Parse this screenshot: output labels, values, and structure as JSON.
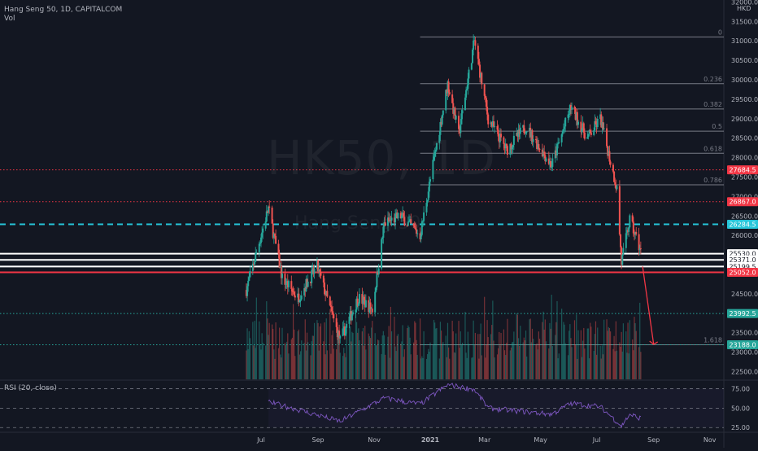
{
  "header": {
    "symbol_line": "Hang Seng 50, 1D, CAPITALCOM",
    "vol_label": "Vol",
    "watermark_symbol": "HK50, 1D",
    "watermark_name": "Hang Seng 50"
  },
  "currency": "HKD",
  "rsi_title": "RSI (20, close)",
  "chart_data": {
    "type": "candlestick",
    "title": "Hang Seng 50, 1D, CAPITALCOM",
    "x_ticks": [
      "Jul",
      "Sep",
      "Nov",
      "2021",
      "Mar",
      "May",
      "Jul",
      "Sep",
      "Nov"
    ],
    "y_ticks": [
      32000,
      31500,
      31000,
      30500,
      30000,
      29500,
      29000,
      28500,
      28000,
      27500,
      27000,
      26500,
      26000,
      25500,
      25000,
      24500,
      24000,
      23500,
      23000,
      22500
    ],
    "y_range": [
      22300,
      32050
    ],
    "key_price": [
      {
        "date": "2020-06-15",
        "value": 24600
      },
      {
        "date": "2020-07-09",
        "value": 26700
      },
      {
        "date": "2020-07-24",
        "value": 24900
      },
      {
        "date": "2020-08-10",
        "value": 24400
      },
      {
        "date": "2020-08-31",
        "value": 25200
      },
      {
        "date": "2020-09-25",
        "value": 23300
      },
      {
        "date": "2020-10-15",
        "value": 24400
      },
      {
        "date": "2020-10-30",
        "value": 24100
      },
      {
        "date": "2020-11-12",
        "value": 26300
      },
      {
        "date": "2020-11-30",
        "value": 26500
      },
      {
        "date": "2020-12-21",
        "value": 26000
      },
      {
        "date": "2021-01-20",
        "value": 29900
      },
      {
        "date": "2021-02-01",
        "value": 28600
      },
      {
        "date": "2021-02-18",
        "value": 31000
      },
      {
        "date": "2021-03-05",
        "value": 29000
      },
      {
        "date": "2021-03-25",
        "value": 28200
      },
      {
        "date": "2021-04-15",
        "value": 28800
      },
      {
        "date": "2021-05-13",
        "value": 27800
      },
      {
        "date": "2021-06-03",
        "value": 29300
      },
      {
        "date": "2021-06-21",
        "value": 28500
      },
      {
        "date": "2021-07-05",
        "value": 29000
      },
      {
        "date": "2021-07-23",
        "value": 27200
      },
      {
        "date": "2021-07-28",
        "value": 25300
      },
      {
        "date": "2021-08-06",
        "value": 26400
      },
      {
        "date": "2021-08-18",
        "value": 25600
      }
    ],
    "price_labels": [
      {
        "value": 27684.5,
        "label": "27684.5",
        "color": "#f23645",
        "style": "dotted"
      },
      {
        "value": 26867.0,
        "label": "26867.0",
        "color": "#f23645",
        "style": "dotted"
      },
      {
        "value": 26284.5,
        "label": "26284.5",
        "color": "#26c6da",
        "style": "dashed"
      },
      {
        "value": 25530.0,
        "label": "25530.0",
        "color": "#ffffff",
        "style": "solid"
      },
      {
        "value": 25371.0,
        "label": "25371.0",
        "color": "#ffffff",
        "style": "solid"
      },
      {
        "value": 25199.5,
        "label": "25199.5",
        "color": "#ffffff",
        "style": "solid"
      },
      {
        "value": 25052.0,
        "label": "25052.0",
        "color": "#f23645",
        "style": "solid"
      },
      {
        "value": 23992.5,
        "label": "23992.5",
        "color": "#26a69a",
        "style": "dotted"
      },
      {
        "value": 23188.0,
        "label": "23188.0",
        "color": "#26a69a",
        "style": "dotted"
      }
    ],
    "fib_levels": [
      {
        "ratio": "0",
        "value": 31100
      },
      {
        "ratio": "0.236",
        "value": 29900
      },
      {
        "ratio": "0.382",
        "value": 29250
      },
      {
        "ratio": "0.5",
        "value": 28680
      },
      {
        "ratio": "0.618",
        "value": 28110
      },
      {
        "ratio": "0.786",
        "value": 27300
      },
      {
        "ratio": "1.618",
        "value": 23188
      }
    ],
    "arrow": {
      "from_date": "2021-08-20",
      "from_value": 25200,
      "to_date": "2021-09-01",
      "to_value": 23200
    },
    "rsi": {
      "ticks": [
        75,
        50,
        25
      ],
      "points": [
        {
          "date": "2020-07-09",
          "value": 58
        },
        {
          "date": "2020-08-10",
          "value": 48
        },
        {
          "date": "2020-09-25",
          "value": 33
        },
        {
          "date": "2020-11-12",
          "value": 63
        },
        {
          "date": "2020-12-21",
          "value": 55
        },
        {
          "date": "2021-01-20",
          "value": 80
        },
        {
          "date": "2021-02-18",
          "value": 74
        },
        {
          "date": "2021-03-05",
          "value": 50
        },
        {
          "date": "2021-05-13",
          "value": 42
        },
        {
          "date": "2021-06-03",
          "value": 56
        },
        {
          "date": "2021-07-05",
          "value": 52
        },
        {
          "date": "2021-07-28",
          "value": 27
        },
        {
          "date": "2021-08-06",
          "value": 42
        },
        {
          "date": "2021-08-18",
          "value": 37
        }
      ]
    }
  }
}
